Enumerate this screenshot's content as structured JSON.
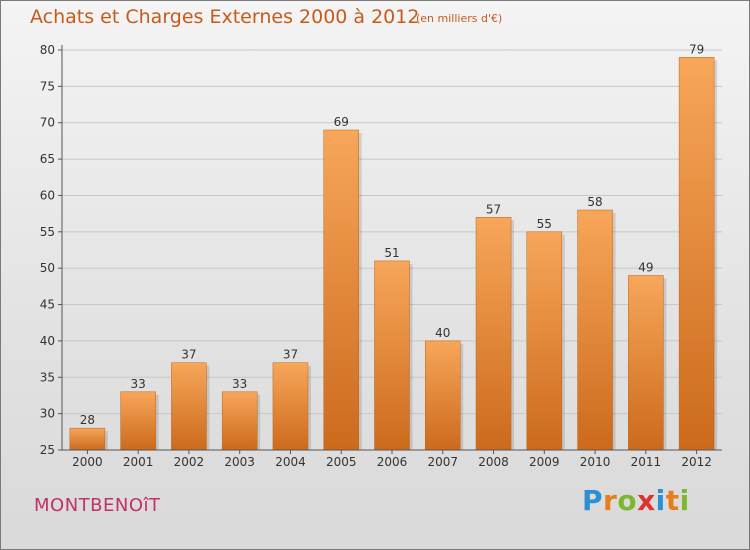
{
  "title": "Achats et Charges Externes 2000 à 2012",
  "subtitle": "(en milliers d'€)",
  "commune": "MONTBENOîT",
  "logo": {
    "letters": [
      "P",
      "r",
      "o",
      "x",
      "i",
      "t",
      "i"
    ],
    "colors": [
      "#2a8fd4",
      "#e67e1e",
      "#7cb82f",
      "#e03030",
      "#2a8fd4",
      "#e67e1e",
      "#7cb82f"
    ]
  },
  "colors": {
    "bar_top": "#f7a65a",
    "bar_bottom": "#cc6a1c",
    "title": "#c85a1a",
    "commune": "#c0306a"
  },
  "chart_data": {
    "type": "bar",
    "title": "Achats et Charges Externes 2000 à 2012",
    "subtitle": "(en milliers d'€)",
    "categories": [
      "2000",
      "2001",
      "2002",
      "2003",
      "2004",
      "2005",
      "2006",
      "2007",
      "2008",
      "2009",
      "2010",
      "2011",
      "2012"
    ],
    "values": [
      28,
      33,
      37,
      33,
      37,
      69,
      51,
      40,
      57,
      55,
      58,
      49,
      79
    ],
    "ylim": [
      25,
      80
    ],
    "yticks": [
      25,
      30,
      35,
      40,
      45,
      50,
      55,
      60,
      65,
      70,
      75,
      80
    ],
    "grid": true
  }
}
